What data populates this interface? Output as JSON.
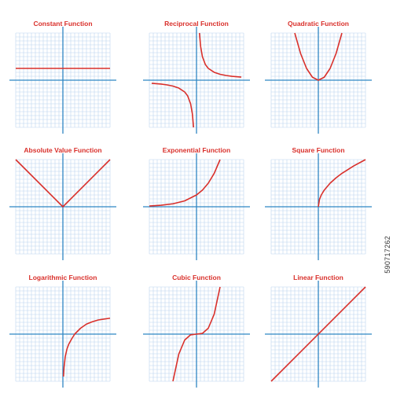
{
  "chart_data": [
    {
      "type": "line",
      "title": "Constant Function",
      "x": [
        -4,
        4
      ],
      "y": [
        1,
        1
      ],
      "xlim": [
        -4,
        4
      ],
      "ylim": [
        -4,
        4
      ],
      "grid": true
    },
    {
      "type": "line",
      "title": "Reciprocal Function",
      "x": [
        -3.8,
        -3,
        -2.5,
        -2,
        -1.5,
        -1,
        -0.75,
        -0.5,
        -0.35,
        -0.25,
        0.25,
        0.35,
        0.5,
        0.75,
        1,
        1.5,
        2,
        2.5,
        3,
        3.8
      ],
      "y": [
        -0.26,
        -0.33,
        -0.4,
        -0.5,
        -0.67,
        -1,
        -1.33,
        -2,
        -2.86,
        -4,
        4,
        2.86,
        2,
        1.33,
        1,
        0.67,
        0.5,
        0.4,
        0.33,
        0.26
      ],
      "xlim": [
        -4,
        4
      ],
      "ylim": [
        -4,
        4
      ],
      "grid": true
    },
    {
      "type": "line",
      "title": "Quadratic Function",
      "x": [
        -2,
        -1.5,
        -1,
        -0.5,
        0,
        0.5,
        1,
        1.5,
        2
      ],
      "y": [
        4,
        2.25,
        1,
        0.25,
        0,
        0.25,
        1,
        2.25,
        4
      ],
      "xlim": [
        -4,
        4
      ],
      "ylim": [
        -4,
        4
      ],
      "grid": true
    },
    {
      "type": "line",
      "title": "Absolute Value Function",
      "x": [
        -4,
        0,
        4
      ],
      "y": [
        4,
        0,
        4
      ],
      "xlim": [
        -4,
        4
      ],
      "ylim": [
        -4,
        4
      ],
      "grid": true
    },
    {
      "type": "line",
      "title": "Exponential Function",
      "x": [
        -4,
        -3,
        -2,
        -1,
        0,
        0.5,
        1,
        1.5,
        2
      ],
      "y": [
        0.06,
        0.13,
        0.25,
        0.5,
        1,
        1.41,
        2,
        2.83,
        4
      ],
      "xlim": [
        -4,
        4
      ],
      "ylim": [
        -4,
        4
      ],
      "grid": true
    },
    {
      "type": "line",
      "title": "Square Function",
      "x": [
        0,
        0.1,
        0.25,
        0.5,
        1,
        1.5,
        2,
        3,
        4
      ],
      "y": [
        0,
        0.63,
        1,
        1.41,
        2,
        2.45,
        2.83,
        3.46,
        4
      ],
      "xlim": [
        -4,
        4
      ],
      "ylim": [
        -4,
        4
      ],
      "grid": true
    },
    {
      "type": "line",
      "title": "Logarithmic Function",
      "x": [
        0.05,
        0.1,
        0.2,
        0.35,
        0.5,
        0.75,
        1,
        1.5,
        2,
        2.5,
        3,
        4
      ],
      "y": [
        -3.6,
        -2.8,
        -1.9,
        -1.25,
        -0.85,
        -0.4,
        0,
        0.5,
        0.85,
        1.05,
        1.2,
        1.35
      ],
      "xlim": [
        -4,
        4
      ],
      "ylim": [
        -4,
        4
      ],
      "grid": true
    },
    {
      "type": "line",
      "title": "Cubic Function",
      "x": [
        -2,
        -1.5,
        -1,
        -0.5,
        0,
        0.5,
        1,
        1.5,
        2
      ],
      "y": [
        -4,
        -1.69,
        -0.5,
        -0.06,
        0,
        0.06,
        0.5,
        1.69,
        4
      ],
      "xlim": [
        -4,
        4
      ],
      "ylim": [
        -4,
        4
      ],
      "grid": true
    },
    {
      "type": "line",
      "title": "Linear Function",
      "x": [
        -4,
        4
      ],
      "y": [
        -4,
        4
      ],
      "xlim": [
        -4,
        4
      ],
      "ylim": [
        -4,
        4
      ],
      "grid": true
    }
  ],
  "colors": {
    "curve": "#d9302b",
    "axis": "#2f86c4",
    "grid": "#bcd6ef",
    "title": "#d9302b"
  },
  "watermark": "590717262"
}
